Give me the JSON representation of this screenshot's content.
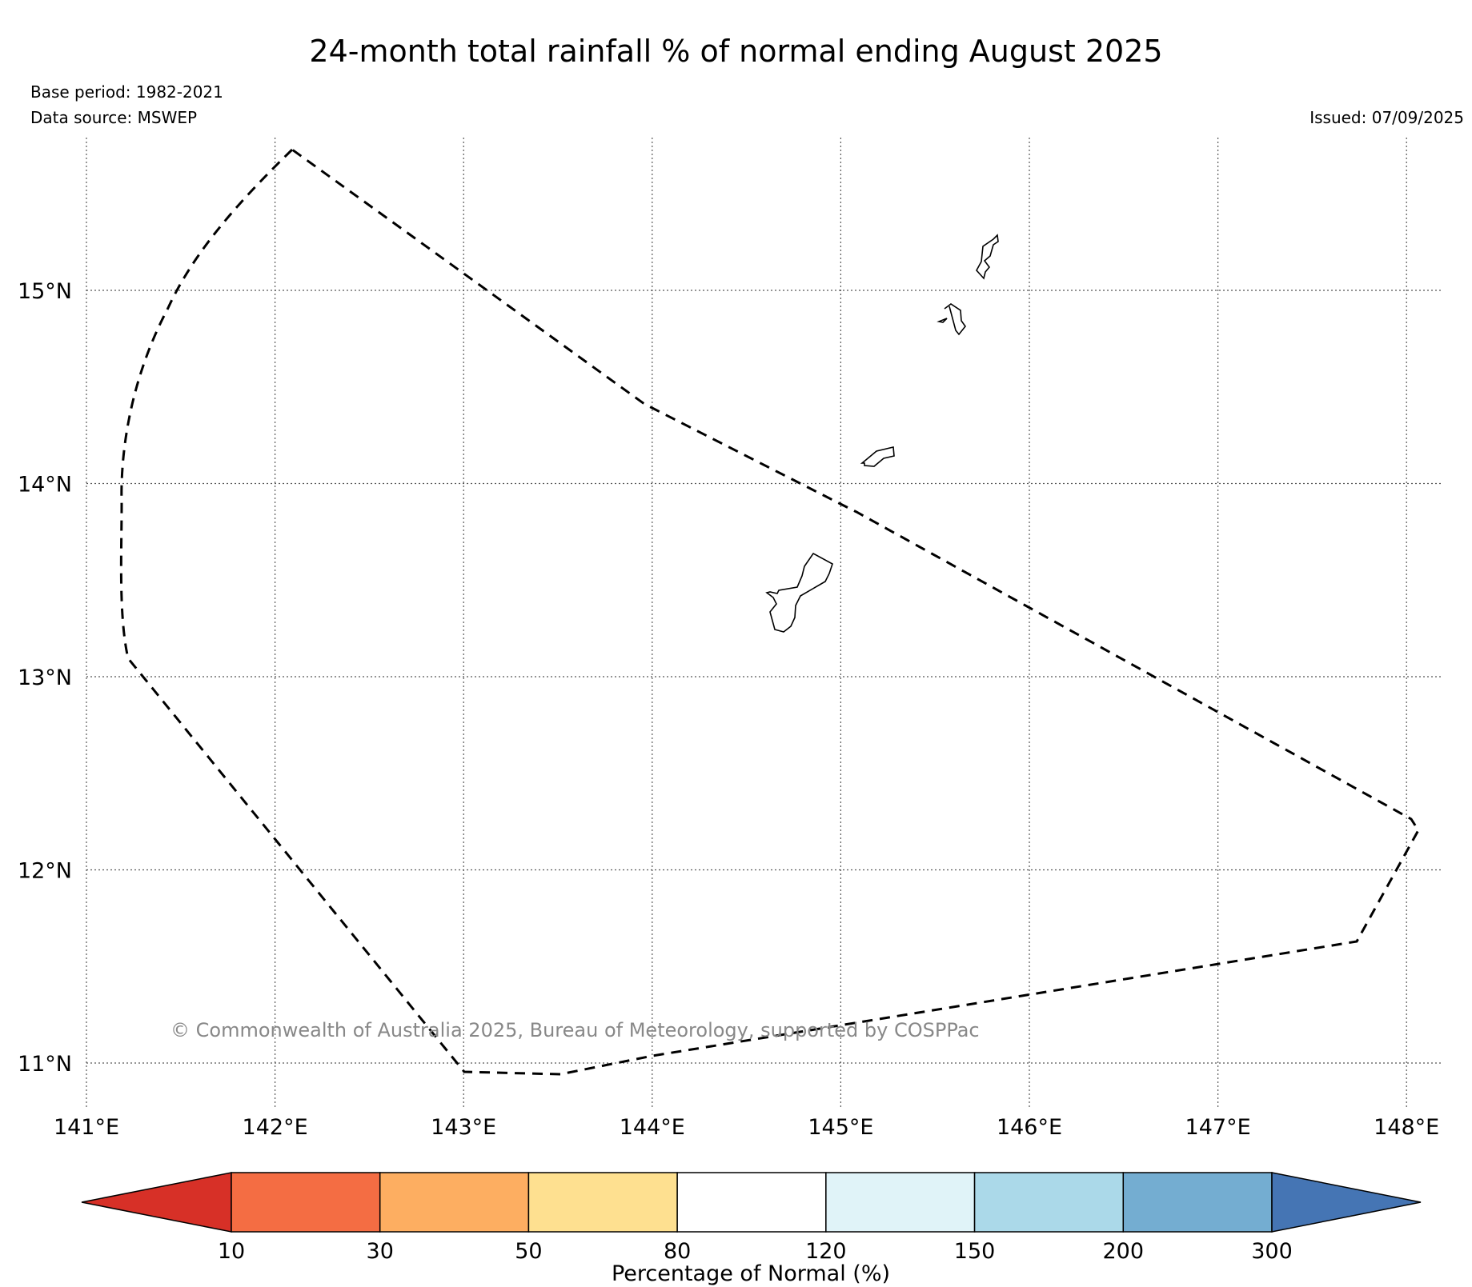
{
  "title": "24-month total rainfall % of normal ending August 2025",
  "base_period": "Base period: 1982-2021",
  "data_source": "Data source: MSWEP",
  "issued": "Issued: 07/09/2025",
  "credit": "© Commonwealth of Australia 2025, Bureau of Meteorology, supported by COSPPac",
  "lon_ticks": [
    "141°E",
    "142°E",
    "143°E",
    "144°E",
    "145°E",
    "146°E",
    "147°E",
    "148°E"
  ],
  "lat_ticks": [
    "15°N",
    "14°N",
    "13°N",
    "12°N",
    "11°N"
  ],
  "colorbar": {
    "label": "Percentage of Normal (%)",
    "ticks": [
      "10",
      "30",
      "50",
      "80",
      "120",
      "150",
      "200",
      "300"
    ],
    "colors": {
      "under": "#d73027",
      "bins": [
        "#f46d43",
        "#fdae61",
        "#fee090",
        "#ffffff",
        "#e0f3f8",
        "#abd9e9",
        "#74add1"
      ],
      "over": "#4575b4"
    }
  },
  "layers": {
    "eez_boundary": "dashed",
    "coastline": "solid"
  }
}
